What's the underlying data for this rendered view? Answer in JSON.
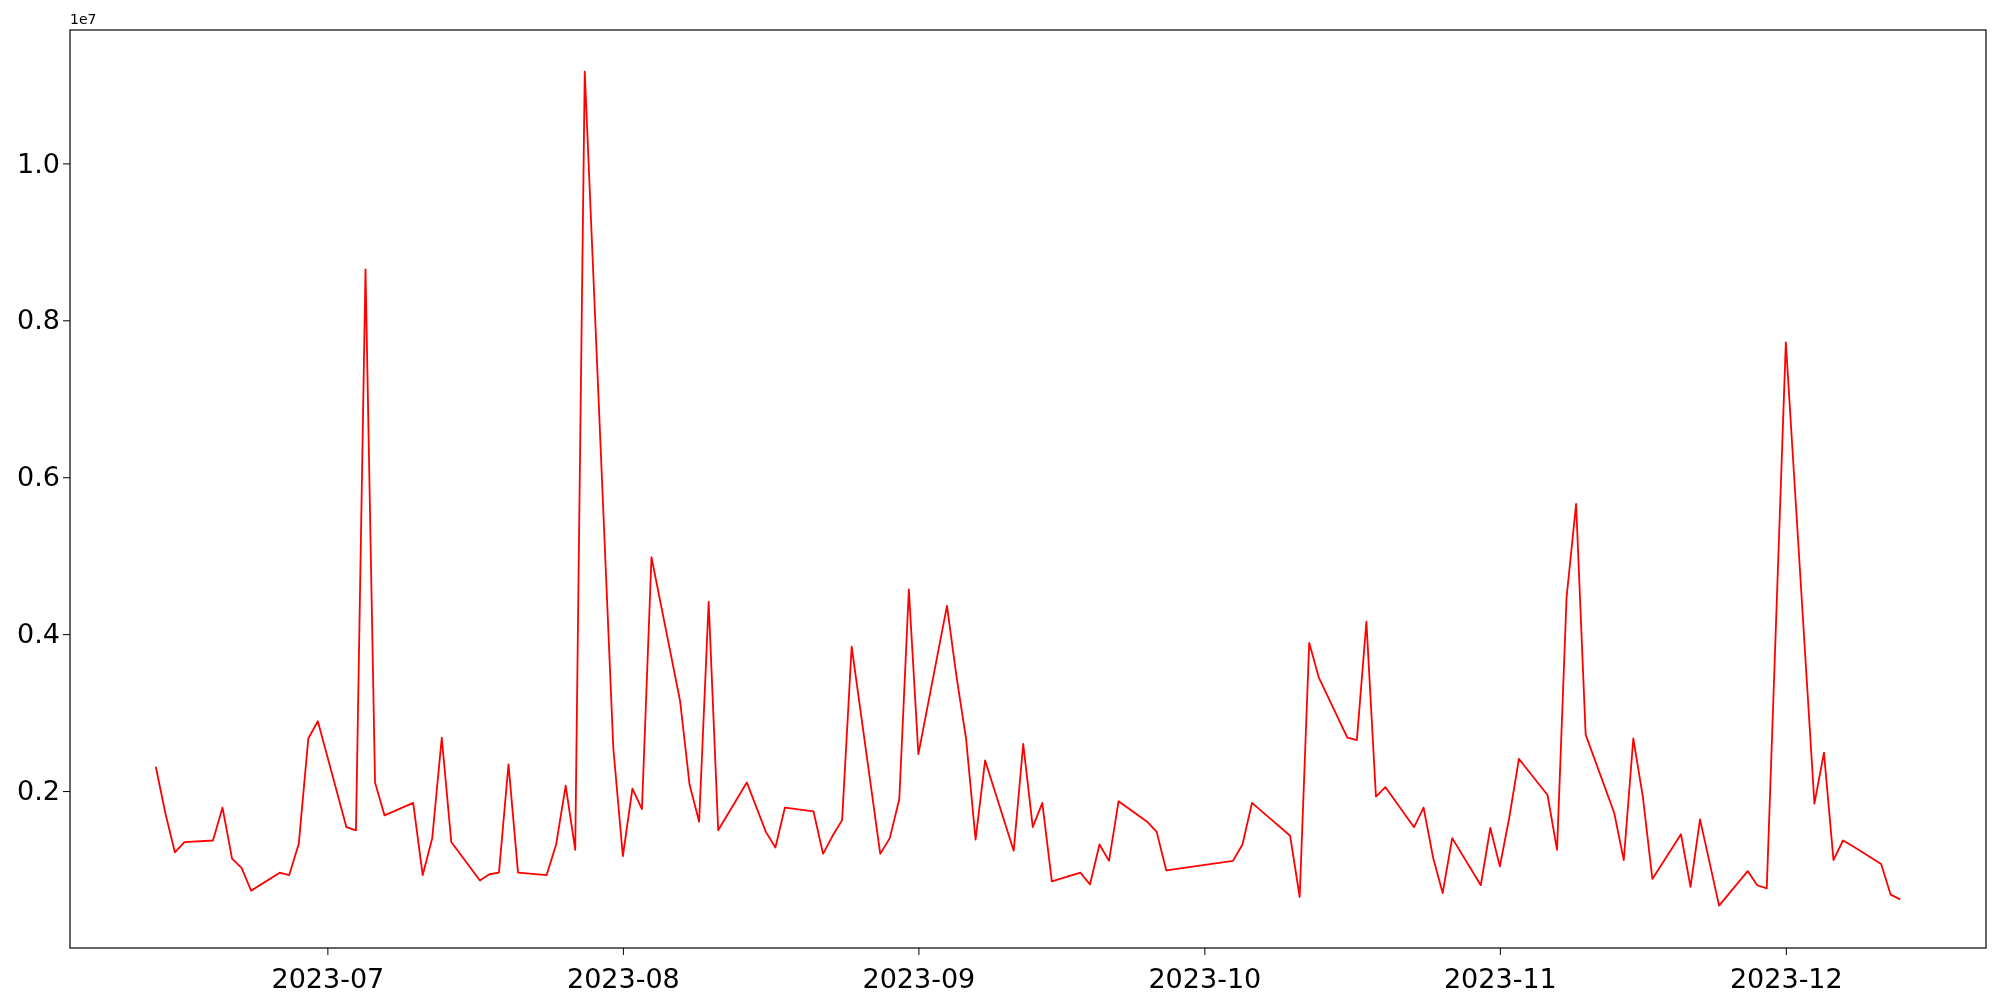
{
  "chart_data": {
    "type": "line",
    "x": [
      "2023-06-13",
      "2023-06-14",
      "2023-06-15",
      "2023-06-16",
      "2023-06-19",
      "2023-06-20",
      "2023-06-21",
      "2023-06-22",
      "2023-06-23",
      "2023-06-26",
      "2023-06-27",
      "2023-06-28",
      "2023-06-29",
      "2023-06-30",
      "2023-07-03",
      "2023-07-04",
      "2023-07-05",
      "2023-07-06",
      "2023-07-07",
      "2023-07-10",
      "2023-07-11",
      "2023-07-12",
      "2023-07-13",
      "2023-07-14",
      "2023-07-17",
      "2023-07-18",
      "2023-07-19",
      "2023-07-20",
      "2023-07-21",
      "2023-07-24",
      "2023-07-25",
      "2023-07-26",
      "2023-07-27",
      "2023-07-28",
      "2023-07-31",
      "2023-08-01",
      "2023-08-02",
      "2023-08-03",
      "2023-08-04",
      "2023-08-07",
      "2023-08-08",
      "2023-08-09",
      "2023-08-10",
      "2023-08-11",
      "2023-08-14",
      "2023-08-16",
      "2023-08-17",
      "2023-08-18",
      "2023-08-21",
      "2023-08-22",
      "2023-08-23",
      "2023-08-24",
      "2023-08-25",
      "2023-08-28",
      "2023-08-29",
      "2023-08-30",
      "2023-08-31",
      "2023-09-01",
      "2023-09-04",
      "2023-09-05",
      "2023-09-06",
      "2023-09-07",
      "2023-09-08",
      "2023-09-11",
      "2023-09-12",
      "2023-09-13",
      "2023-09-14",
      "2023-09-15",
      "2023-09-18",
      "2023-09-19",
      "2023-09-20",
      "2023-09-21",
      "2023-09-22",
      "2023-09-25",
      "2023-09-26",
      "2023-09-27",
      "2023-10-04",
      "2023-10-05",
      "2023-10-06",
      "2023-10-10",
      "2023-10-11",
      "2023-10-12",
      "2023-10-13",
      "2023-10-16",
      "2023-10-17",
      "2023-10-18",
      "2023-10-19",
      "2023-10-20",
      "2023-10-23",
      "2023-10-24",
      "2023-10-25",
      "2023-10-26",
      "2023-10-27",
      "2023-10-30",
      "2023-10-31",
      "2023-11-01",
      "2023-11-02",
      "2023-11-03",
      "2023-11-06",
      "2023-11-07",
      "2023-11-08",
      "2023-11-09",
      "2023-11-10",
      "2023-11-13",
      "2023-11-14",
      "2023-11-15",
      "2023-11-16",
      "2023-11-17",
      "2023-11-20",
      "2023-11-21",
      "2023-11-22",
      "2023-11-24",
      "2023-11-27",
      "2023-11-28",
      "2023-11-29",
      "2023-12-01",
      "2023-12-04",
      "2023-12-05",
      "2023-12-06",
      "2023-12-07",
      "2023-12-08",
      "2023-12-11",
      "2023-12-12",
      "2023-12-13"
    ],
    "series": [
      {
        "color": "#ff0000",
        "values": [
          0.231,
          0.172,
          0.122,
          0.135,
          0.137,
          0.179,
          0.114,
          0.102,
          0.073,
          0.096,
          0.093,
          0.133,
          0.267,
          0.289,
          0.154,
          0.15,
          0.865,
          0.211,
          0.169,
          0.185,
          0.093,
          0.14,
          0.268,
          0.135,
          0.086,
          0.094,
          0.096,
          0.234,
          0.096,
          0.093,
          0.132,
          0.207,
          0.125,
          1.117,
          0.254,
          0.117,
          0.203,
          0.177,
          0.498,
          0.315,
          0.208,
          0.161,
          0.441,
          0.15,
          0.211,
          0.148,
          0.128,
          0.179,
          0.174,
          0.12,
          0.143,
          0.163,
          0.384,
          0.12,
          0.14,
          0.19,
          0.457,
          0.247,
          0.436,
          0.346,
          0.267,
          0.138,
          0.239,
          0.124,
          0.26,
          0.154,
          0.185,
          0.085,
          0.096,
          0.081,
          0.132,
          0.111,
          0.187,
          0.161,
          0.148,
          0.099,
          0.111,
          0.132,
          0.185,
          0.143,
          0.065,
          0.389,
          0.345,
          0.268,
          0.265,
          0.416,
          0.193,
          0.205,
          0.154,
          0.179,
          0.115,
          0.07,
          0.14,
          0.08,
          0.153,
          0.104,
          0.167,
          0.241,
          0.195,
          0.125,
          0.447,
          0.566,
          0.272,
          0.172,
          0.112,
          0.267,
          0.193,
          0.088,
          0.145,
          0.078,
          0.164,
          0.054,
          0.098,
          0.08,
          0.076,
          0.772,
          0.184,
          0.249,
          0.112,
          0.137,
          0.13,
          0.107,
          0.068,
          0.062
        ]
      }
    ],
    "xlim": [
      "2023-06-04",
      "2023-12-22"
    ],
    "xticks": [
      {
        "value": "2023-07-01",
        "label": "2023-07"
      },
      {
        "value": "2023-08-01",
        "label": "2023-08"
      },
      {
        "value": "2023-09-01",
        "label": "2023-09"
      },
      {
        "value": "2023-10-01",
        "label": "2023-10"
      },
      {
        "value": "2023-11-01",
        "label": "2023-11"
      },
      {
        "value": "2023-12-01",
        "label": "2023-12"
      }
    ],
    "ylim": [
      0.0,
      1.17
    ],
    "yticks": [
      {
        "value": 0.2,
        "label": "0.2"
      },
      {
        "value": 0.4,
        "label": "0.4"
      },
      {
        "value": 0.6,
        "label": "0.6"
      },
      {
        "value": 0.8,
        "label": "0.8"
      },
      {
        "value": 1.0,
        "label": "1.0"
      }
    ],
    "annotations": [
      "1e7"
    ]
  }
}
